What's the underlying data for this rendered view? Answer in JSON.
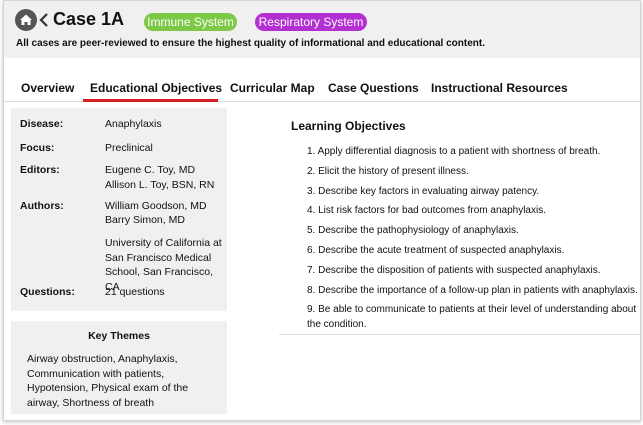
{
  "header": {
    "title": "Case 1A",
    "tags": [
      "Immune System",
      "Respiratory System"
    ],
    "subtitle": "All cases are peer-reviewed to ensure the highest quality of informational and educational content."
  },
  "tabs": [
    "Overview",
    "Educational Objectives",
    "Curricular Map",
    "Case Questions",
    "Instructional Resources"
  ],
  "details": [
    {
      "label": "Disease:",
      "values": [
        "Anaphylaxis"
      ]
    },
    {
      "label": "Focus:",
      "values": [
        "Preclinical"
      ]
    },
    {
      "label": "Editors:",
      "values": [
        "Eugene C. Toy, MD",
        "Allison L. Toy, BSN, RN"
      ]
    },
    {
      "label": "Authors:",
      "values": [
        "William Goodson, MD",
        "Barry Simon, MD",
        "University of California at San Francisco Medical School, San Francisco, CA"
      ]
    },
    {
      "label": "Questions:",
      "values": [
        "21 questions"
      ]
    }
  ],
  "key_themes": {
    "title": "Key Themes",
    "text": "Airway obstruction, Anaphylaxis, Communication with patients, Hypotension, Physical exam of the airway, Shortness of breath"
  },
  "learning_objectives": {
    "title": "Learning Objectives",
    "items": [
      "1. Apply differential diagnosis to a patient with shortness of breath.",
      "2. Elicit the history of present illness.",
      "3. Describe key factors in evaluating airway patency.",
      "4. List risk factors for bad outcomes from anaphylaxis.",
      "5. Describe the pathophysiology of anaphylaxis.",
      "6. Describe the acute treatment of suspected anaphylaxis.",
      "7. Describe the disposition of patients with suspected anaphylaxis.",
      "8. Describe the importance of a follow-up plan in patients with anaphylaxis.",
      "9. Be able to communicate to patients at their level of understanding about the condition."
    ]
  }
}
